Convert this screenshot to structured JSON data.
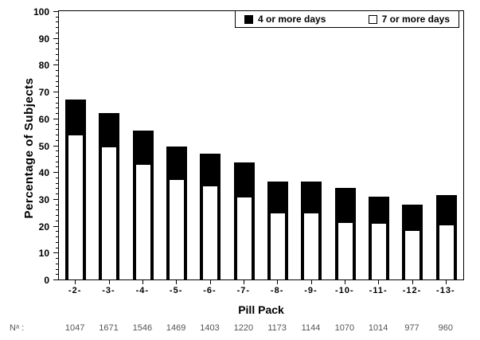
{
  "figure": {
    "n_row_label": "Nᵃ :",
    "legend": [
      {
        "swatch": "black-filled-square",
        "label": "4 or more days"
      },
      {
        "swatch": "white-open-square",
        "label": "7 or more days"
      }
    ]
  },
  "chart_data": {
    "type": "bar",
    "subtype": "overlaid-bars-black-total-white-subset",
    "title": "",
    "xlabel": "Pill Pack",
    "ylabel": "Percentage of Subjects",
    "ylim": [
      0,
      100
    ],
    "y_major_tick_step": 10,
    "y_minor_tick_step": 2,
    "grid": false,
    "legend_position": "top-right-inside",
    "categories": [
      "-2-",
      "-3-",
      "-4-",
      "-5-",
      "-6-",
      "-7-",
      "-8-",
      "-9-",
      "-10-",
      "-11-",
      "-12-",
      "-13-"
    ],
    "series": [
      {
        "name": "4 or more days",
        "color": "#000000",
        "values": [
          67,
          62,
          55.5,
          49.5,
          47,
          43.5,
          36.5,
          36.5,
          34,
          31,
          28,
          31.5
        ]
      },
      {
        "name": "7 or more days",
        "color": "#ffffff",
        "values": [
          54,
          49.5,
          43,
          37.5,
          35,
          31,
          25,
          25,
          21.5,
          21,
          18.5,
          20.5
        ]
      }
    ],
    "n_values": [
      1047,
      1671,
      1546,
      1469,
      1403,
      1220,
      1173,
      1144,
      1070,
      1014,
      977,
      960
    ]
  }
}
